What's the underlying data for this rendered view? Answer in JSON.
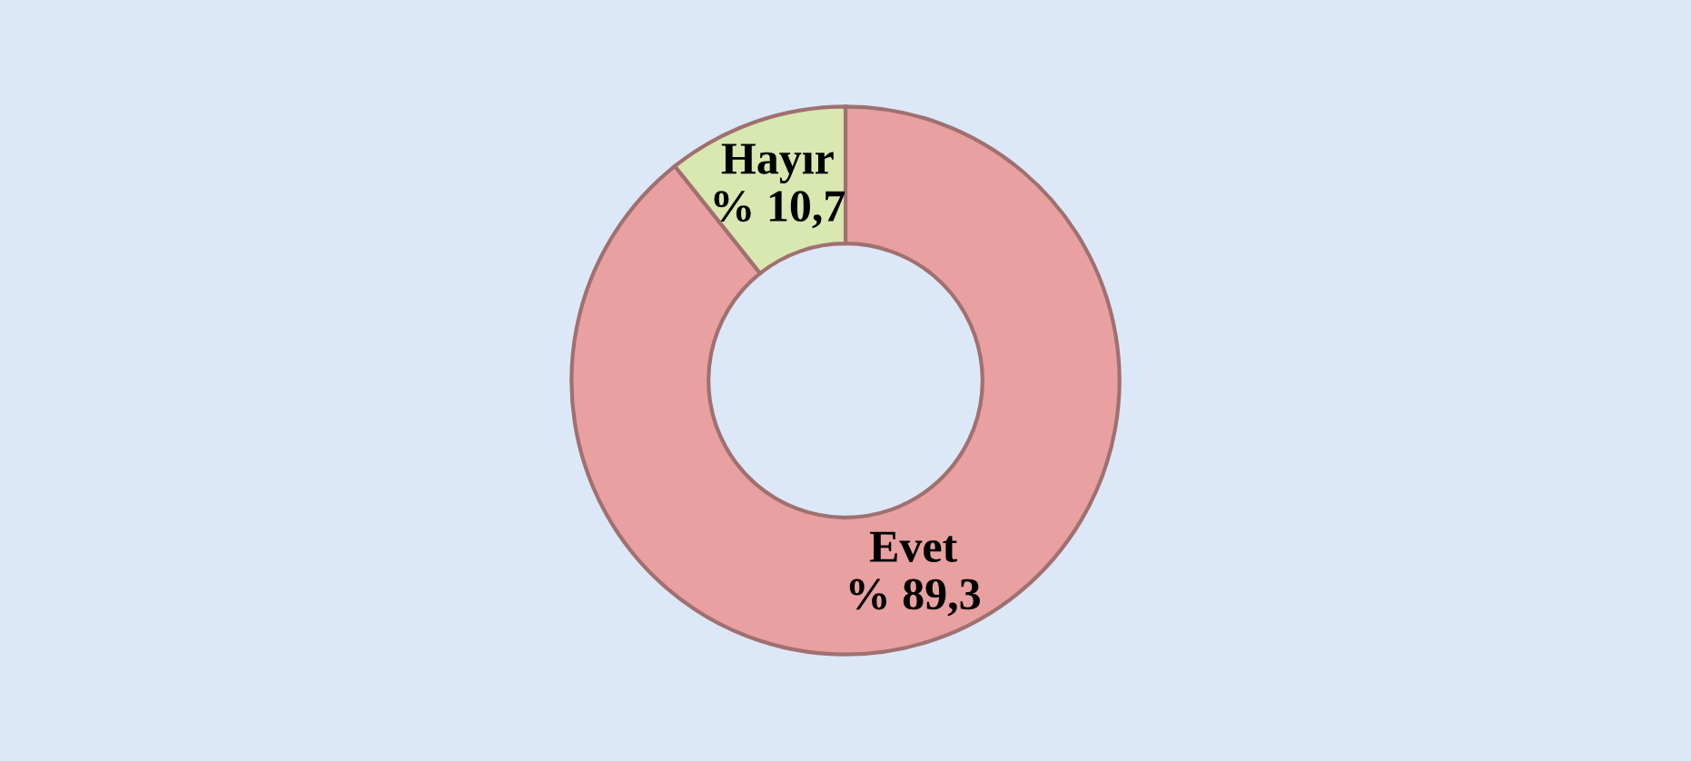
{
  "chart_data": {
    "type": "donut",
    "categories": [
      "Evet",
      "Hayır"
    ],
    "values": [
      89.3,
      10.7
    ],
    "colors": [
      "#e8a0a0",
      "#d8e8b0"
    ],
    "value_labels": [
      "% 89,3",
      "% 10,7"
    ],
    "legend": false
  }
}
